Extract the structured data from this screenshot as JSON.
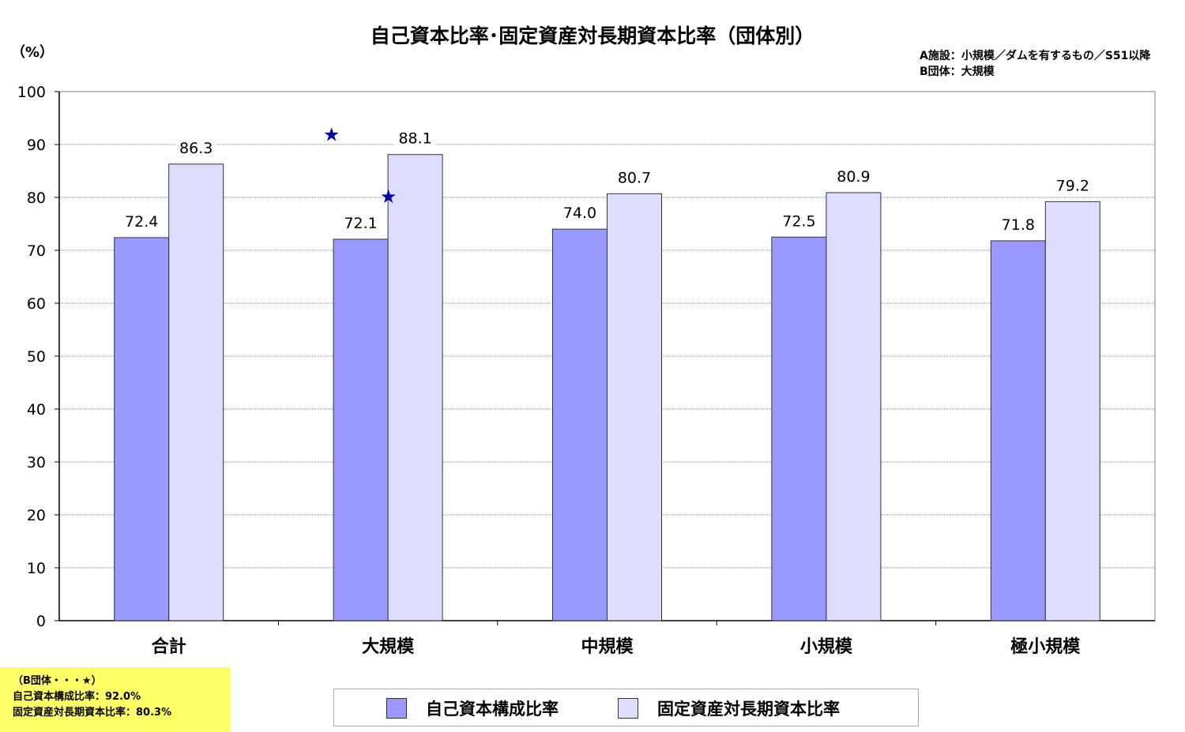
{
  "title": "自己資本比率･固定資産対長期資本比率（団体別）",
  "unit_label": "（%）",
  "notes": [
    "A施設：小規模／ダムを有するもの／S51以降",
    "B団体：大規模"
  ],
  "colors": {
    "series1": "#9999ff",
    "series2": "#ddddff",
    "star": "#0000aa",
    "note_bg": "#ffff66",
    "grid": "#808080"
  },
  "chart_data": {
    "type": "bar",
    "ylim": [
      0,
      100
    ],
    "yticks": [
      0,
      10,
      20,
      30,
      40,
      50,
      60,
      70,
      80,
      90,
      100
    ],
    "ytick_labels": [
      "0",
      "10",
      "20",
      "30",
      "40",
      "50",
      "60",
      "70",
      "80",
      "90",
      "100"
    ],
    "categories": [
      "合計",
      "大規模",
      "中規模",
      "小規模",
      "極小規模"
    ],
    "series": [
      {
        "name": "自己資本構成比率",
        "values": [
          72.4,
          72.1,
          74.0,
          72.5,
          71.8
        ],
        "labels": [
          "72.4",
          "72.1",
          "74.0",
          "72.5",
          "71.8"
        ]
      },
      {
        "name": "固定資産対長期資本比率",
        "values": [
          86.3,
          88.1,
          80.7,
          80.9,
          79.2
        ],
        "labels": [
          "86.3",
          "88.1",
          "80.7",
          "80.9",
          "79.2"
        ]
      }
    ],
    "markers": [
      {
        "category": "大規模",
        "series": 0,
        "value": 92.0,
        "symbol": "★"
      },
      {
        "category": "大規模",
        "series": 1,
        "value": 80.3,
        "symbol": "★"
      }
    ],
    "grid": true,
    "legend": "bottom"
  },
  "footnote": {
    "heading": "（B団体・・・★）",
    "lines": [
      "自己資本構成比率：92.0%",
      "固定資産対長期資本比率：80.3%"
    ]
  }
}
